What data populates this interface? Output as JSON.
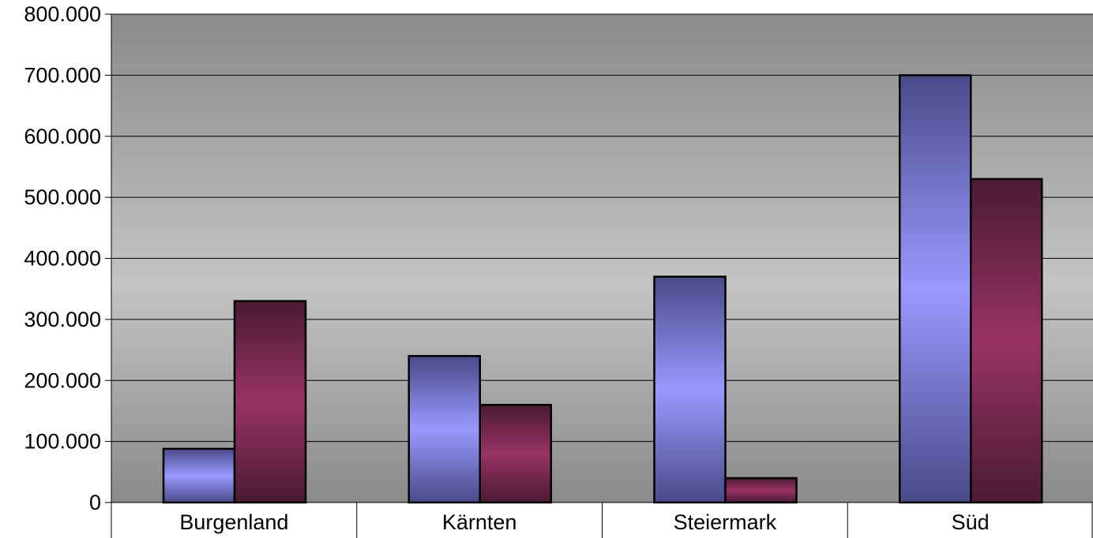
{
  "chart_data": {
    "type": "bar",
    "title": "",
    "xlabel": "",
    "ylabel": "",
    "categories": [
      "Burgenland",
      "Kärnten",
      "Steiermark",
      "Süd"
    ],
    "series": [
      {
        "values": [
          88000,
          240000,
          370000,
          700000
        ]
      },
      {
        "values": [
          330000,
          160000,
          40000,
          530000
        ]
      }
    ],
    "ylim": [
      0,
      800000
    ],
    "yticks": [
      0,
      100000,
      200000,
      300000,
      400000,
      500000,
      600000,
      700000,
      800000
    ],
    "ytick_labels": [
      "0",
      "100.000",
      "200.000",
      "300.000",
      "400.000",
      "500.000",
      "600.000",
      "700.000",
      "800.000"
    ],
    "grid": true,
    "legend": "none",
    "colors": {
      "series1_edge": "#4a4a8a",
      "series1_center": "#9999ff",
      "series2_edge": "#4a1a32",
      "series2_center": "#993366",
      "background_edge": "#8a8a8a",
      "background_center": "#c4c4c4"
    }
  }
}
